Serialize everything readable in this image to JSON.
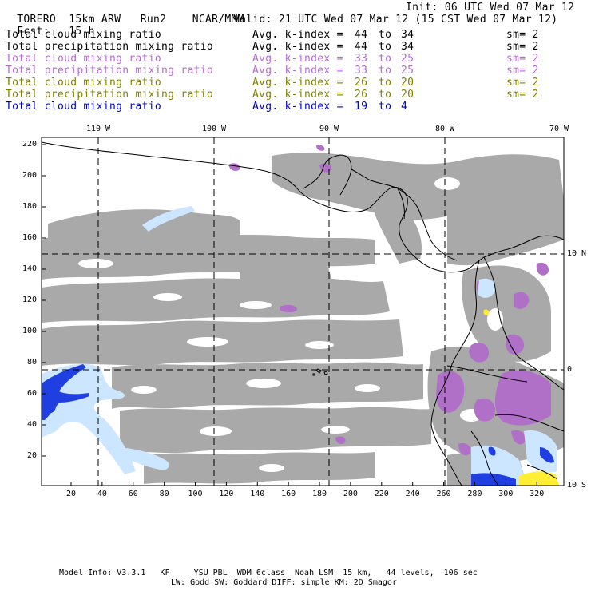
{
  "header": {
    "model": "TORERO",
    "config": "15km ARW",
    "run": "Run2",
    "org": "NCAR/MMM",
    "init": "Init: 06 UTC Wed 07 Mar 12",
    "fcst_label": "Fcst:",
    "fcst_value": "15 h",
    "valid": "Valid: 21 UTC Wed 07 Mar 12 (15 CST Wed 07 Mar 12)"
  },
  "legend_rows": [
    {
      "field": "Total cloud mixing ratio",
      "avg_label": "Avg. k-index =",
      "from": "44",
      "to_word": "to",
      "to": "34",
      "sm": "sm= 2",
      "color": "#000000"
    },
    {
      "field": "Total precipitation mixing ratio",
      "avg_label": "Avg. k-index =",
      "from": "44",
      "to_word": "to",
      "to": "34",
      "sm": "sm= 2",
      "color": "#000000"
    },
    {
      "field": "Total cloud mixing ratio",
      "avg_label": "Avg. k-index =",
      "from": "33",
      "to_word": "to",
      "to": "25",
      "sm": "sm= 2",
      "color": "#b36bd1"
    },
    {
      "field": "Total precipitation mixing ratio",
      "avg_label": "Avg. k-index =",
      "from": "33",
      "to_word": "to",
      "to": "25",
      "sm": "sm= 2",
      "color": "#b36bd1"
    },
    {
      "field": "Total cloud mixing ratio",
      "avg_label": "Avg. k-index =",
      "from": "26",
      "to_word": "to",
      "to": "20",
      "sm": "sm= 2",
      "color": "#808000"
    },
    {
      "field": "Total precipitation mixing ratio",
      "avg_label": "Avg. k-index =",
      "from": "26",
      "to_word": "to",
      "to": "20",
      "sm": "sm= 2",
      "color": "#808000"
    },
    {
      "field": "Total cloud mixing ratio",
      "avg_label": "Avg. k-index =",
      "from": "19",
      "to_word": "to",
      "to": "4",
      "sm": "",
      "color": "#0000cc"
    }
  ],
  "map": {
    "top_lon_labels": [
      "110 W",
      "100 W",
      "90 W",
      "80 W",
      "70 W"
    ],
    "right_lat_labels": [
      "10 N",
      "0",
      "10 S"
    ],
    "left_y_ticks": [
      "220",
      "200",
      "180",
      "160",
      "140",
      "120",
      "100",
      "80",
      "60",
      "40",
      "20"
    ],
    "bottom_x_ticks": [
      "20",
      "40",
      "60",
      "80",
      "100",
      "120",
      "140",
      "160",
      "180",
      "200",
      "220",
      "240",
      "260",
      "280",
      "300",
      "320"
    ],
    "colors": {
      "cloud_gray": "#a9a9a9",
      "purple": "#b070c8",
      "blue_dark": "#1f3fe0",
      "blue_light": "#cde6ff",
      "yellow": "#ffee33",
      "coast": "#000000"
    }
  },
  "footer": {
    "line1": "Model Info: V3.3.1   KF     YSU PBL  WDM 6class  Noah LSM  15 km,   44 levels,  106 sec",
    "line2": "LW: Godd SW: Goddard DIFF: simple KM: 2D Smagor"
  }
}
